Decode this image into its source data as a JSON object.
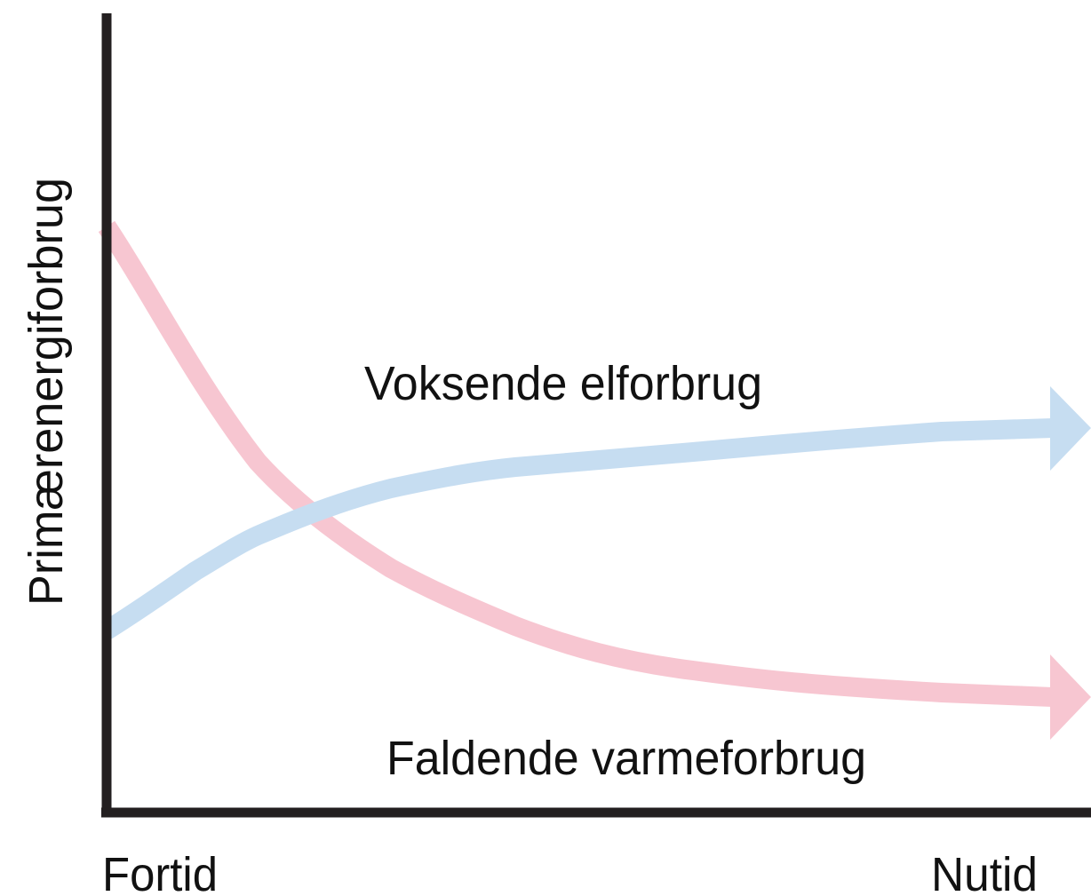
{
  "y_axis_label": "Primærenergiforbrug",
  "x_start_label": "Fortid",
  "x_end_label": "Nutid",
  "curves": [
    {
      "label": "Voksende elforbrug"
    },
    {
      "label": "Faldende varmeforbrug"
    }
  ]
}
